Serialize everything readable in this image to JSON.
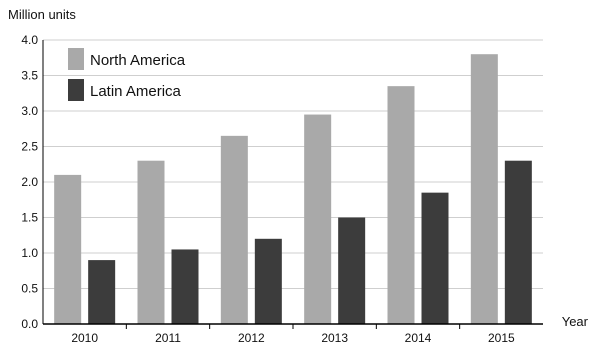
{
  "chart_data": {
    "type": "bar",
    "ylabel": "Million units",
    "xlabel": "Year",
    "categories": [
      "2010",
      "2011",
      "2012",
      "2013",
      "2014",
      "2015"
    ],
    "ylim": [
      0,
      4
    ],
    "yticks": [
      "0.0",
      "0.5",
      "1.0",
      "1.5",
      "2.0",
      "2.5",
      "3.0",
      "3.5",
      "4.0"
    ],
    "grid": "horizontal",
    "legend_position": "top-left",
    "series": [
      {
        "name": "North America",
        "color": "#a9a9a9",
        "values": [
          2.1,
          2.3,
          2.65,
          2.95,
          3.35,
          3.8
        ]
      },
      {
        "name": "Latin America",
        "color": "#3c3c3c",
        "values": [
          0.9,
          1.05,
          1.2,
          1.5,
          1.85,
          2.3
        ]
      }
    ]
  }
}
